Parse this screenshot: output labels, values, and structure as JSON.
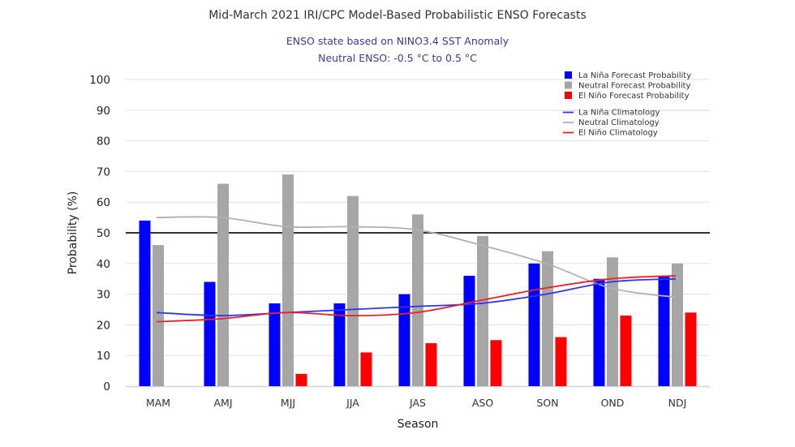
{
  "chart_data": {
    "type": "bar",
    "title": "Mid-March 2021 IRI/CPC Model-Based Probabilistic ENSO Forecasts",
    "subtitle_lines": [
      "ENSO state based on NINO3.4 SST Anomaly",
      "Neutral ENSO: -0.5 °C to 0.5 °C"
    ],
    "xlabel": "Season",
    "ylabel": "Probability (%)",
    "ylim": [
      0,
      100
    ],
    "yticks": [
      0,
      10,
      20,
      30,
      40,
      50,
      60,
      70,
      80,
      90,
      100
    ],
    "grid": true,
    "reference_line": 50,
    "legend_position": "top-right",
    "categories": [
      "MAM",
      "AMJ",
      "MJJ",
      "JJA",
      "JAS",
      "ASO",
      "SON",
      "OND",
      "NDJ"
    ],
    "series": [
      {
        "name": "La Niña Forecast Probability",
        "kind": "bar",
        "color": "#0000ff",
        "values": [
          54,
          34,
          27,
          27,
          30,
          36,
          40,
          35,
          36
        ]
      },
      {
        "name": "Neutral Forecast Probability",
        "kind": "bar",
        "color": "#a6a6a6",
        "values": [
          46,
          66,
          69,
          62,
          56,
          49,
          44,
          42,
          40
        ]
      },
      {
        "name": "El Niño Forecast Probability",
        "kind": "bar",
        "color": "#ff0000",
        "values": [
          0,
          0,
          4,
          11,
          14,
          15,
          16,
          23,
          24
        ]
      },
      {
        "name": "La Niña Climatology",
        "kind": "line",
        "color": "#3333ee",
        "values": [
          24,
          23,
          24,
          25,
          26,
          27,
          30,
          34,
          35
        ]
      },
      {
        "name": "Neutral Climatology",
        "kind": "line",
        "color": "#b0b0b0",
        "values": [
          55,
          55,
          52,
          52,
          51,
          46,
          40,
          32,
          29
        ]
      },
      {
        "name": "El Niño Climatology",
        "kind": "line",
        "color": "#ee2222",
        "values": [
          21,
          22,
          24,
          23,
          24,
          28,
          32,
          35,
          36
        ]
      }
    ]
  }
}
